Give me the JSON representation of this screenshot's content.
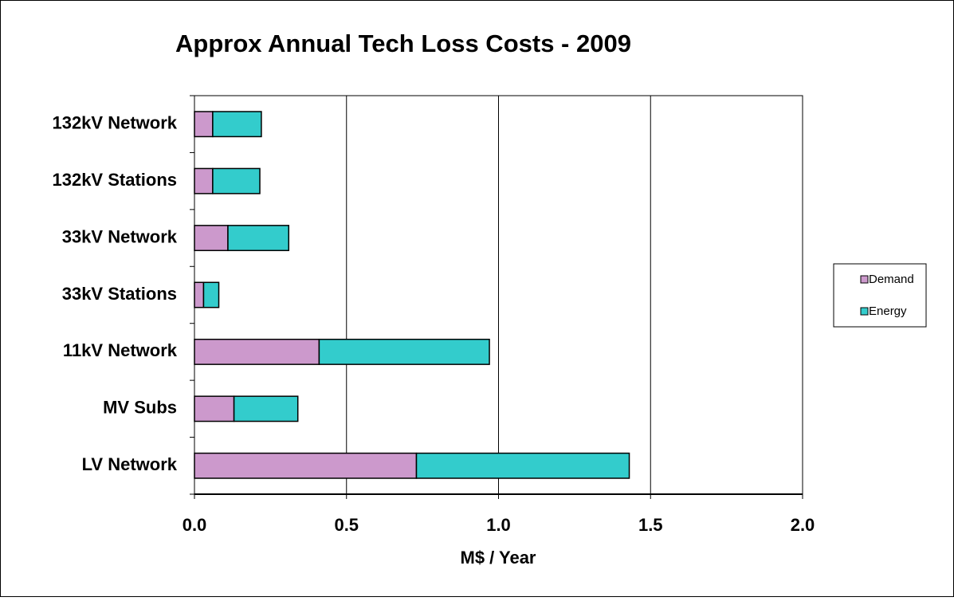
{
  "chart_data": {
    "type": "bar",
    "orientation": "horizontal",
    "stacked": true,
    "title": "Approx Annual Tech Loss Costs - 2009",
    "xlabel": "M$ / Year",
    "categories": [
      "132kV Network",
      "132kV Stations",
      "33kV Network",
      "33kV Stations",
      "11kV Network",
      "MV Subs",
      "LV Network"
    ],
    "series": [
      {
        "name": "Demand",
        "color": "#cc99cc",
        "values": [
          0.06,
          0.06,
          0.11,
          0.03,
          0.41,
          0.13,
          0.73
        ]
      },
      {
        "name": "Energy",
        "color": "#33cccc",
        "values": [
          0.16,
          0.155,
          0.2,
          0.05,
          0.56,
          0.21,
          0.7
        ]
      }
    ],
    "xlim": [
      0,
      2
    ],
    "xticks": [
      {
        "value": 0,
        "label": "0.0"
      },
      0.5,
      {
        "value": 1,
        "label": "1.0"
      },
      1.5,
      {
        "value": 2,
        "label": "2.0"
      }
    ],
    "grid": true,
    "legend": "right"
  }
}
